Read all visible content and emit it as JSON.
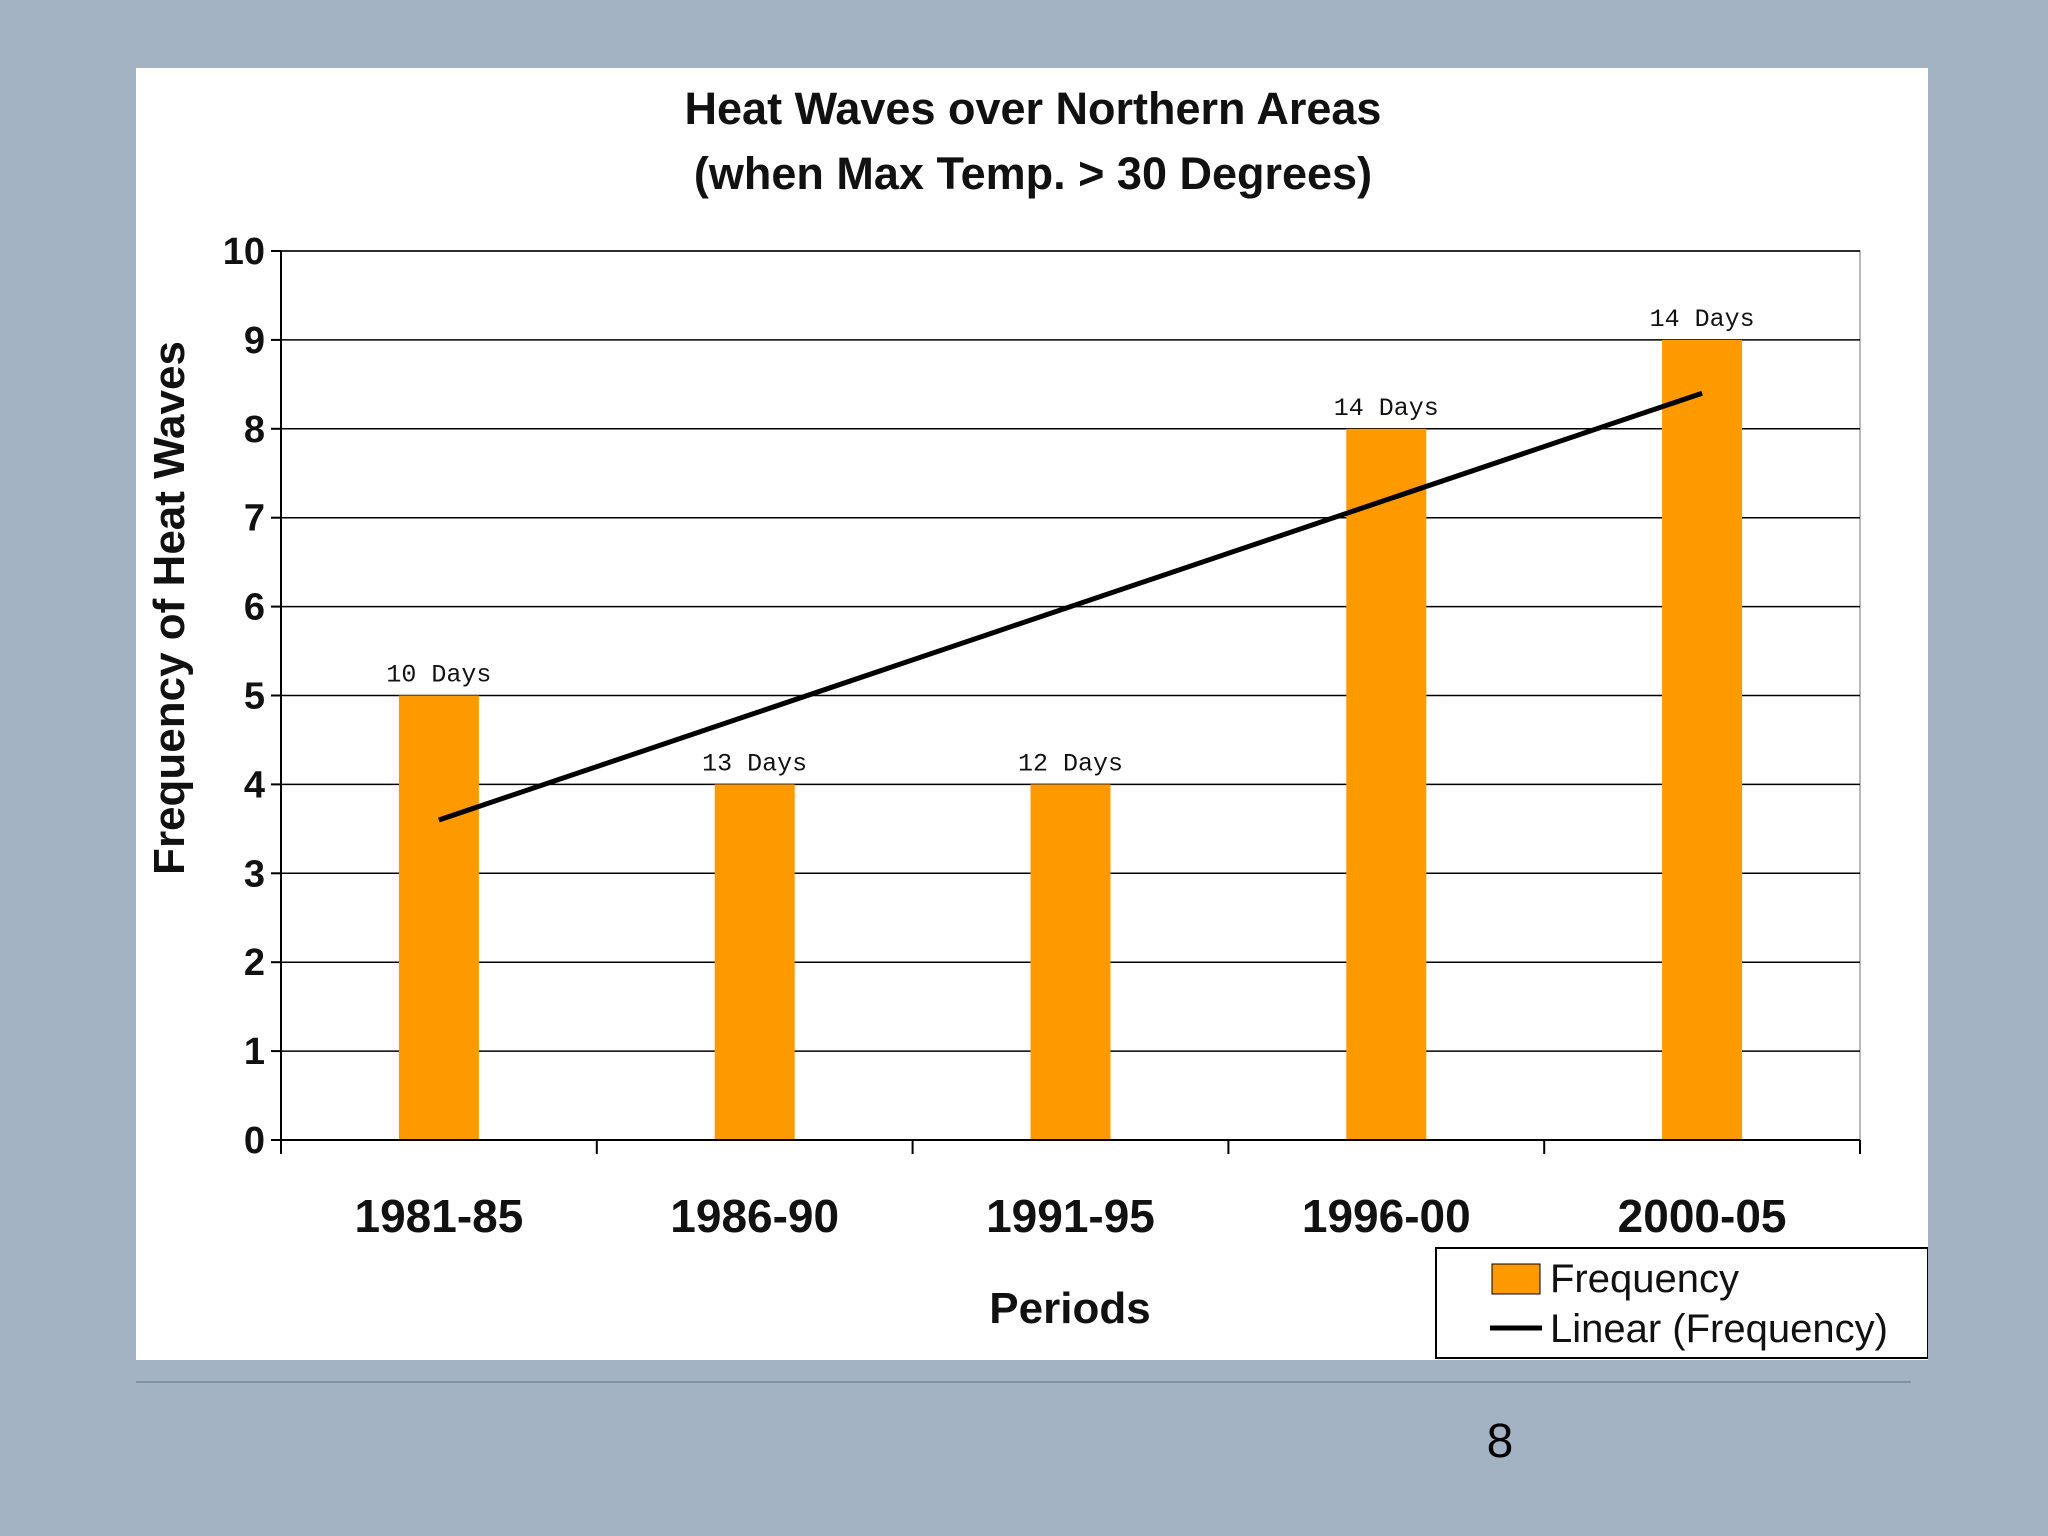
{
  "slide": {
    "page_number": "8"
  },
  "colors": {
    "background": "#a3b3c4",
    "bar": "#ff9900",
    "trend": "#000000",
    "grid": "#000000"
  },
  "chart_data": {
    "type": "bar",
    "title_lines": [
      "Heat Waves over Northern Areas",
      "(when Max Temp. > 30 Degrees)"
    ],
    "categories": [
      "1981-85",
      "1986-90",
      "1991-95",
      "1996-00",
      "2000-05"
    ],
    "series": [
      {
        "name": "Frequency",
        "type": "bar",
        "values": [
          5,
          4,
          4,
          8,
          9
        ]
      },
      {
        "name": "Linear (Frequency)",
        "type": "line",
        "values": [
          3.6,
          4.8,
          6.0,
          7.2,
          8.4
        ]
      }
    ],
    "data_labels": [
      "10 Days",
      "13 Days",
      "12 Days",
      "14 Days",
      "14 Days"
    ],
    "xlabel": "Periods",
    "ylabel": "Frequency of Heat Waves",
    "ylim": [
      0,
      10
    ],
    "yticks": [
      0,
      1,
      2,
      3,
      4,
      5,
      6,
      7,
      8,
      9,
      10
    ],
    "grid": true,
    "legend_position": "bottom-right",
    "legend": [
      "Frequency",
      "Linear (Frequency)"
    ]
  }
}
